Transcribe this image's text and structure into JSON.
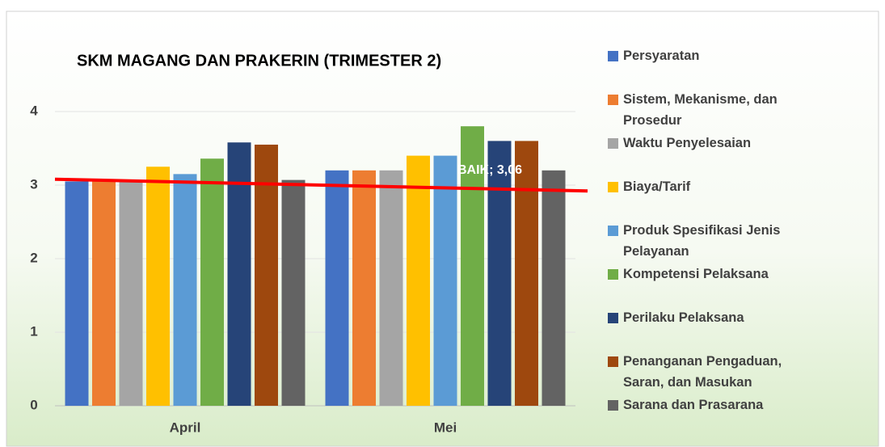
{
  "chart_data": {
    "type": "bar",
    "title": "SKM MAGANG DAN PRAKERIN (TRIMESTER 2)",
    "categories": [
      "April",
      "Mei"
    ],
    "series": [
      {
        "name": "Persyaratan",
        "color": "#4472c4",
        "values": [
          3.05,
          3.2
        ]
      },
      {
        "name": "Sistem, Mekanisme, dan Prosedur",
        "color": "#ed7d31",
        "values": [
          3.07,
          3.2
        ]
      },
      {
        "name": "Waktu Penyelesaian",
        "color": "#a5a5a5",
        "values": [
          3.05,
          3.2
        ]
      },
      {
        "name": "Biaya/Tarif",
        "color": "#ffc000",
        "values": [
          3.25,
          3.4
        ]
      },
      {
        "name": "Produk Spesifikasi Jenis Pelayanan",
        "color": "#5b9bd5",
        "values": [
          3.15,
          3.4
        ]
      },
      {
        "name": "Kompetensi Pelaksana",
        "color": "#70ad47",
        "values": [
          3.36,
          3.8
        ]
      },
      {
        "name": "Perilaku Pelaksana",
        "color": "#264478",
        "values": [
          3.58,
          3.6
        ]
      },
      {
        "name": "Penanganan Pengaduan, Saran, dan Masukan",
        "color": "#9e480e",
        "values": [
          3.55,
          3.6
        ]
      },
      {
        "name": "Sarana dan Prasarana",
        "color": "#636363",
        "values": [
          3.07,
          3.2
        ]
      }
    ],
    "trendline": {
      "values": [
        3.08,
        2.92
      ],
      "color": "#ff0000"
    },
    "annotation": "BAIK; 3,06",
    "ylim": [
      0,
      4
    ],
    "yticks": [
      0,
      1,
      2,
      3,
      4
    ],
    "grid": true
  }
}
